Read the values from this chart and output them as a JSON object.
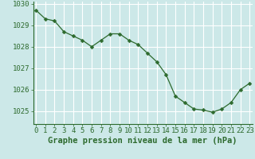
{
  "x": [
    0,
    1,
    2,
    3,
    4,
    5,
    6,
    7,
    8,
    9,
    10,
    11,
    12,
    13,
    14,
    15,
    16,
    17,
    18,
    19,
    20,
    21,
    22,
    23
  ],
  "y": [
    1029.7,
    1029.3,
    1029.2,
    1028.7,
    1028.5,
    1028.3,
    1028.0,
    1028.3,
    1028.6,
    1028.6,
    1028.3,
    1028.1,
    1027.7,
    1027.3,
    1026.7,
    1025.7,
    1025.4,
    1025.1,
    1025.05,
    1024.95,
    1025.1,
    1025.4,
    1026.0,
    1026.3
  ],
  "line_color": "#2d6a2d",
  "marker": "D",
  "marker_size": 2.5,
  "bg_color": "#cce8e8",
  "grid_color": "#ffffff",
  "axis_color": "#2d6a2d",
  "xlabel": "Graphe pression niveau de la mer (hPa)",
  "xlabel_fontsize": 7.5,
  "tick_fontsize": 6.5,
  "yticks": [
    1025,
    1026,
    1027,
    1028,
    1029,
    1030
  ],
  "xticks": [
    0,
    1,
    2,
    3,
    4,
    5,
    6,
    7,
    8,
    9,
    10,
    11,
    12,
    13,
    14,
    15,
    16,
    17,
    18,
    19,
    20,
    21,
    22,
    23
  ],
  "ylim": [
    1024.4,
    1030.1
  ],
  "xlim": [
    -0.3,
    23.3
  ]
}
